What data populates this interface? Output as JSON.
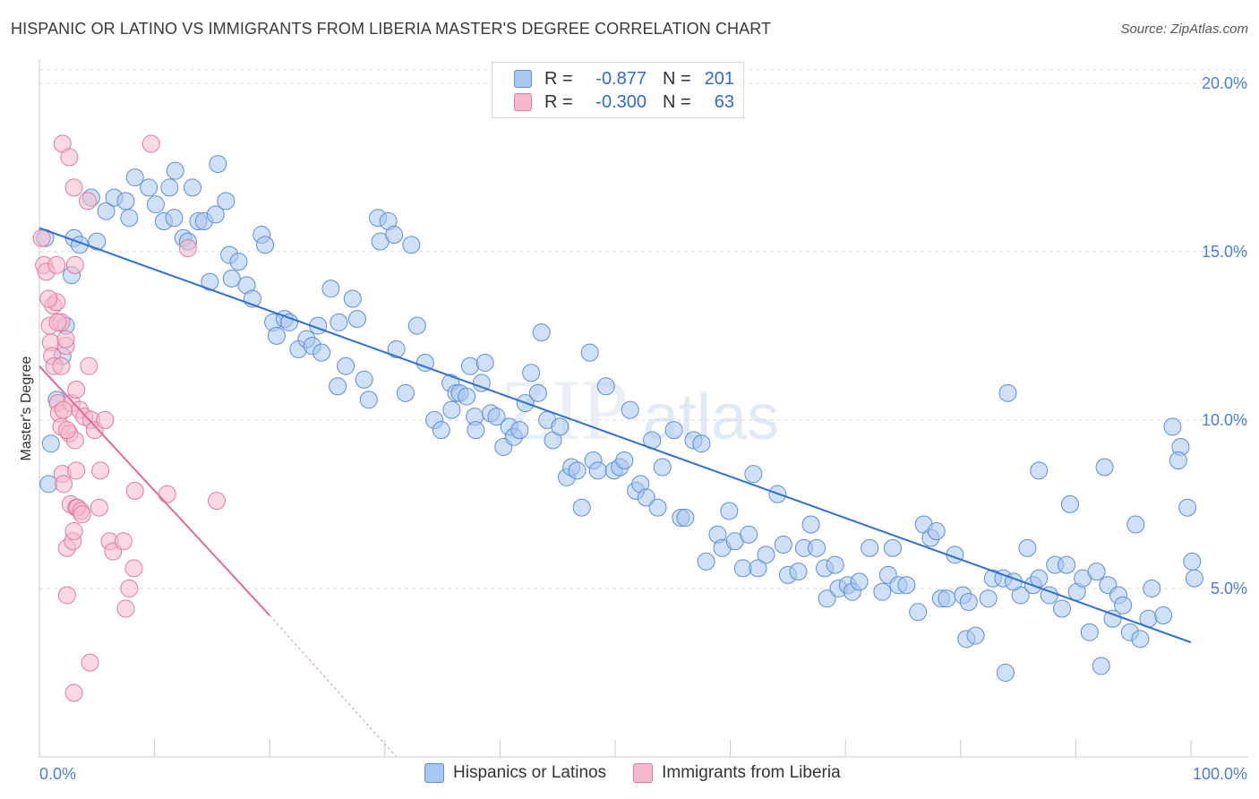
{
  "title": "HISPANIC OR LATINO VS IMMIGRANTS FROM LIBERIA MASTER'S DEGREE CORRELATION CHART",
  "source": "Source: ZipAtlas.com",
  "watermark": {
    "zip": "ZIP",
    "atlas": "atlas"
  },
  "legend": {
    "rows": [
      {
        "r_label": "R =",
        "r_value": "-0.877",
        "n_label": "N =",
        "n_value": "201",
        "color": "#a9c6f0",
        "border": "#5b8fd9"
      },
      {
        "r_label": "R =",
        "r_value": "-0.300",
        "n_label": "N =",
        "n_value": "63",
        "color": "#f6b9cc",
        "border": "#e27a9c"
      }
    ]
  },
  "bottom_legend": [
    {
      "label": "Hispanics or Latinos",
      "color": "#a9c6f0",
      "border": "#5b8fd9"
    },
    {
      "label": "Immigrants from Liberia",
      "color": "#f6b9cc",
      "border": "#e27a9c"
    }
  ],
  "chart_data": {
    "type": "scatter",
    "ylabel": "Master's Degree",
    "x_tick_labels": [
      "0.0%",
      "100.0%"
    ],
    "y_tick_labels": [
      "5.0%",
      "10.0%",
      "15.0%",
      "20.0%"
    ],
    "y_ticks": [
      5,
      10,
      15,
      20
    ],
    "xlim": [
      0,
      100
    ],
    "ylim": [
      0,
      20.5
    ],
    "grid": true,
    "series": [
      {
        "name": "Hispanics or Latinos",
        "color": "#a9c6f0",
        "edge": "#5b8fd9",
        "trend": {
          "x0": 0,
          "y0": 15.7,
          "x1": 100,
          "y1": 3.4,
          "color": "#2f6fd0"
        },
        "points": [
          [
            0.5,
            15.4
          ],
          [
            0.8,
            8.1
          ],
          [
            1,
            9.3
          ],
          [
            1.5,
            10.6
          ],
          [
            2,
            11.9
          ],
          [
            2.3,
            12.8
          ],
          [
            2.8,
            14.3
          ],
          [
            3,
            15.4
          ],
          [
            3.5,
            15.2
          ],
          [
            5,
            15.3
          ],
          [
            4.5,
            16.6
          ],
          [
            5.8,
            16.2
          ],
          [
            6.5,
            16.6
          ],
          [
            7.5,
            16.5
          ],
          [
            7.8,
            16.0
          ],
          [
            8.3,
            17.2
          ],
          [
            9.5,
            16.9
          ],
          [
            10.1,
            16.4
          ],
          [
            10.8,
            15.9
          ],
          [
            11.3,
            16.9
          ],
          [
            11.7,
            16.0
          ],
          [
            11.8,
            17.4
          ],
          [
            12.5,
            15.4
          ],
          [
            12.9,
            15.3
          ],
          [
            13.3,
            16.9
          ],
          [
            13.8,
            15.9
          ],
          [
            14.3,
            15.9
          ],
          [
            14.8,
            14.1
          ],
          [
            15.3,
            16.1
          ],
          [
            15.5,
            17.6
          ],
          [
            16.2,
            16.5
          ],
          [
            16.5,
            14.9
          ],
          [
            16.7,
            14.2
          ],
          [
            17.3,
            14.7
          ],
          [
            18,
            14.0
          ],
          [
            18.5,
            13.6
          ],
          [
            19.3,
            15.5
          ],
          [
            19.6,
            15.2
          ],
          [
            20.3,
            12.9
          ],
          [
            20.6,
            12.5
          ],
          [
            21.3,
            13.0
          ],
          [
            21.7,
            12.9
          ],
          [
            22.5,
            12.1
          ],
          [
            23.2,
            12.4
          ],
          [
            23.7,
            12.2
          ],
          [
            24.2,
            12.8
          ],
          [
            24.5,
            12.0
          ],
          [
            25.3,
            13.9
          ],
          [
            25.9,
            11.0
          ],
          [
            26,
            12.9
          ],
          [
            26.6,
            11.6
          ],
          [
            27.2,
            13.6
          ],
          [
            27.6,
            13.0
          ],
          [
            28.2,
            11.2
          ],
          [
            28.6,
            10.6
          ],
          [
            29.4,
            16.0
          ],
          [
            29.6,
            15.3
          ],
          [
            30.3,
            15.9
          ],
          [
            30.8,
            15.5
          ],
          [
            32.3,
            15.2
          ],
          [
            31,
            12.1
          ],
          [
            31.8,
            10.8
          ],
          [
            32.8,
            12.8
          ],
          [
            33.5,
            11.7
          ],
          [
            34.3,
            10.0
          ],
          [
            34.9,
            9.7
          ],
          [
            35.8,
            10.3
          ],
          [
            35.7,
            11.1
          ],
          [
            36.2,
            10.8
          ],
          [
            36.5,
            10.8
          ],
          [
            37.1,
            10.7
          ],
          [
            37.4,
            11.6
          ],
          [
            37.8,
            10.1
          ],
          [
            37.9,
            9.7
          ],
          [
            38.4,
            11.1
          ],
          [
            38.7,
            11.7
          ],
          [
            39.2,
            10.2
          ],
          [
            39.7,
            10.1
          ],
          [
            40.3,
            9.2
          ],
          [
            40.8,
            9.8
          ],
          [
            41.2,
            9.5
          ],
          [
            41.7,
            9.7
          ],
          [
            42.2,
            10.5
          ],
          [
            42.7,
            11.4
          ],
          [
            43.3,
            10.8
          ],
          [
            43.6,
            12.6
          ],
          [
            44.1,
            10.0
          ],
          [
            44.6,
            9.4
          ],
          [
            45.2,
            9.8
          ],
          [
            45.8,
            8.3
          ],
          [
            46.2,
            8.6
          ],
          [
            46.7,
            8.5
          ],
          [
            47.1,
            7.4
          ],
          [
            47.8,
            12.0
          ],
          [
            48.1,
            8.8
          ],
          [
            48.5,
            8.5
          ],
          [
            49.2,
            11.0
          ],
          [
            49.9,
            8.5
          ],
          [
            50.4,
            8.6
          ],
          [
            50.8,
            8.8
          ],
          [
            51.3,
            10.3
          ],
          [
            51.8,
            7.9
          ],
          [
            52.2,
            8.1
          ],
          [
            52.7,
            7.7
          ],
          [
            53.2,
            9.4
          ],
          [
            53.7,
            7.4
          ],
          [
            54.1,
            8.6
          ],
          [
            55.1,
            9.7
          ],
          [
            55.7,
            7.1
          ],
          [
            56.1,
            7.1
          ],
          [
            56.8,
            9.4
          ],
          [
            57.5,
            9.3
          ],
          [
            57.9,
            5.8
          ],
          [
            58.9,
            6.6
          ],
          [
            59.3,
            6.2
          ],
          [
            59.9,
            7.3
          ],
          [
            60.4,
            6.4
          ],
          [
            61.1,
            5.6
          ],
          [
            61.6,
            6.6
          ],
          [
            62,
            8.4
          ],
          [
            62.4,
            5.6
          ],
          [
            63.1,
            6.0
          ],
          [
            64.1,
            7.8
          ],
          [
            64.6,
            6.3
          ],
          [
            65,
            5.4
          ],
          [
            65.9,
            5.5
          ],
          [
            66.4,
            6.2
          ],
          [
            67,
            6.9
          ],
          [
            67.5,
            6.2
          ],
          [
            68.2,
            5.6
          ],
          [
            68.4,
            4.7
          ],
          [
            69.1,
            5.7
          ],
          [
            69.4,
            5.0
          ],
          [
            70.2,
            5.1
          ],
          [
            70.6,
            4.9
          ],
          [
            71.2,
            5.2
          ],
          [
            72.1,
            6.2
          ],
          [
            73.2,
            4.9
          ],
          [
            73.7,
            5.4
          ],
          [
            74.1,
            6.2
          ],
          [
            74.6,
            5.1
          ],
          [
            75.3,
            5.1
          ],
          [
            76.3,
            4.3
          ],
          [
            76.8,
            6.9
          ],
          [
            77.4,
            6.5
          ],
          [
            77.9,
            6.7
          ],
          [
            78.3,
            4.7
          ],
          [
            78.8,
            4.7
          ],
          [
            79.5,
            6.0
          ],
          [
            80.2,
            4.8
          ],
          [
            80.5,
            3.5
          ],
          [
            80.7,
            4.6
          ],
          [
            81.3,
            3.6
          ],
          [
            82.4,
            4.7
          ],
          [
            82.8,
            5.3
          ],
          [
            83.7,
            5.3
          ],
          [
            83.9,
            2.5
          ],
          [
            85.2,
            4.8
          ],
          [
            85.8,
            6.2
          ],
          [
            86.3,
            5.1
          ],
          [
            86.8,
            5.3
          ],
          [
            87.7,
            4.8
          ],
          [
            88.2,
            5.7
          ],
          [
            88.8,
            4.4
          ],
          [
            89.2,
            5.7
          ],
          [
            90.1,
            4.9
          ],
          [
            90.6,
            5.3
          ],
          [
            91.2,
            3.7
          ],
          [
            92.2,
            2.7
          ],
          [
            92.8,
            5.1
          ],
          [
            93.7,
            4.8
          ],
          [
            94.1,
            4.5
          ],
          [
            94.7,
            3.7
          ],
          [
            95.6,
            3.5
          ],
          [
            96.3,
            4.1
          ],
          [
            97.6,
            4.2
          ],
          [
            84.1,
            10.8
          ],
          [
            86.8,
            8.5
          ],
          [
            89.5,
            7.5
          ],
          [
            92.5,
            8.6
          ],
          [
            95.2,
            6.9
          ],
          [
            98.4,
            9.8
          ],
          [
            99.1,
            9.2
          ],
          [
            98.9,
            8.8
          ],
          [
            99.7,
            7.4
          ],
          [
            100.1,
            5.8
          ],
          [
            100.3,
            5.3
          ],
          [
            96.6,
            5.0
          ],
          [
            84.6,
            5.2
          ],
          [
            93.2,
            4.1
          ],
          [
            91.8,
            5.5
          ]
        ]
      },
      {
        "name": "Immigrants from Liberia",
        "color": "#f6b9cc",
        "edge": "#e27a9c",
        "trend": {
          "x0": 0,
          "y0": 11.6,
          "x1": 20,
          "y1": 4.2,
          "color": "#e36a93",
          "dash_x1": 31,
          "dash_y1": 0
        },
        "points": [
          [
            0.2,
            15.4
          ],
          [
            0.4,
            14.6
          ],
          [
            0.6,
            14.4
          ],
          [
            0.9,
            12.8
          ],
          [
            1.0,
            12.3
          ],
          [
            1.2,
            13.4
          ],
          [
            1.1,
            11.9
          ],
          [
            1.3,
            11.6
          ],
          [
            1.5,
            13.5
          ],
          [
            1.6,
            10.5
          ],
          [
            1.7,
            10.2
          ],
          [
            1.9,
            12.9
          ],
          [
            1.9,
            9.8
          ],
          [
            2.0,
            8.4
          ],
          [
            2.1,
            8.1
          ],
          [
            2.3,
            12.2
          ],
          [
            2.3,
            12.4
          ],
          [
            2.4,
            6.2
          ],
          [
            2.6,
            9.6
          ],
          [
            2.7,
            7.5
          ],
          [
            2.8,
            10.5
          ],
          [
            2.9,
            6.4
          ],
          [
            3.0,
            6.7
          ],
          [
            3.1,
            9.4
          ],
          [
            3.2,
            8.5
          ],
          [
            3.2,
            10.9
          ],
          [
            3.2,
            7.4
          ],
          [
            3.3,
            7.4
          ],
          [
            3.5,
            10.3
          ],
          [
            3.6,
            7.3
          ],
          [
            3.7,
            7.2
          ],
          [
            3.9,
            10.1
          ],
          [
            4.3,
            11.6
          ],
          [
            4.5,
            10.0
          ],
          [
            4.8,
            9.7
          ],
          [
            5.2,
            7.4
          ],
          [
            5.3,
            8.5
          ],
          [
            2.0,
            18.2
          ],
          [
            2.6,
            17.8
          ],
          [
            3.0,
            16.9
          ],
          [
            4.2,
            16.5
          ],
          [
            3.1,
            14.6
          ],
          [
            1.5,
            14.6
          ],
          [
            0.8,
            13.6
          ],
          [
            1.6,
            12.9
          ],
          [
            1.9,
            11.6
          ],
          [
            2.1,
            10.3
          ],
          [
            2.4,
            9.7
          ],
          [
            5.7,
            10.0
          ],
          [
            6.1,
            6.4
          ],
          [
            6.4,
            6.1
          ],
          [
            7.3,
            6.4
          ],
          [
            7.5,
            4.4
          ],
          [
            7.8,
            5.0
          ],
          [
            8.2,
            5.6
          ],
          [
            8.3,
            7.9
          ],
          [
            9.7,
            18.2
          ],
          [
            11.1,
            7.8
          ],
          [
            12.9,
            15.1
          ],
          [
            15.4,
            7.6
          ],
          [
            3.0,
            1.9
          ],
          [
            4.4,
            2.8
          ],
          [
            2.4,
            4.8
          ]
        ]
      }
    ]
  }
}
